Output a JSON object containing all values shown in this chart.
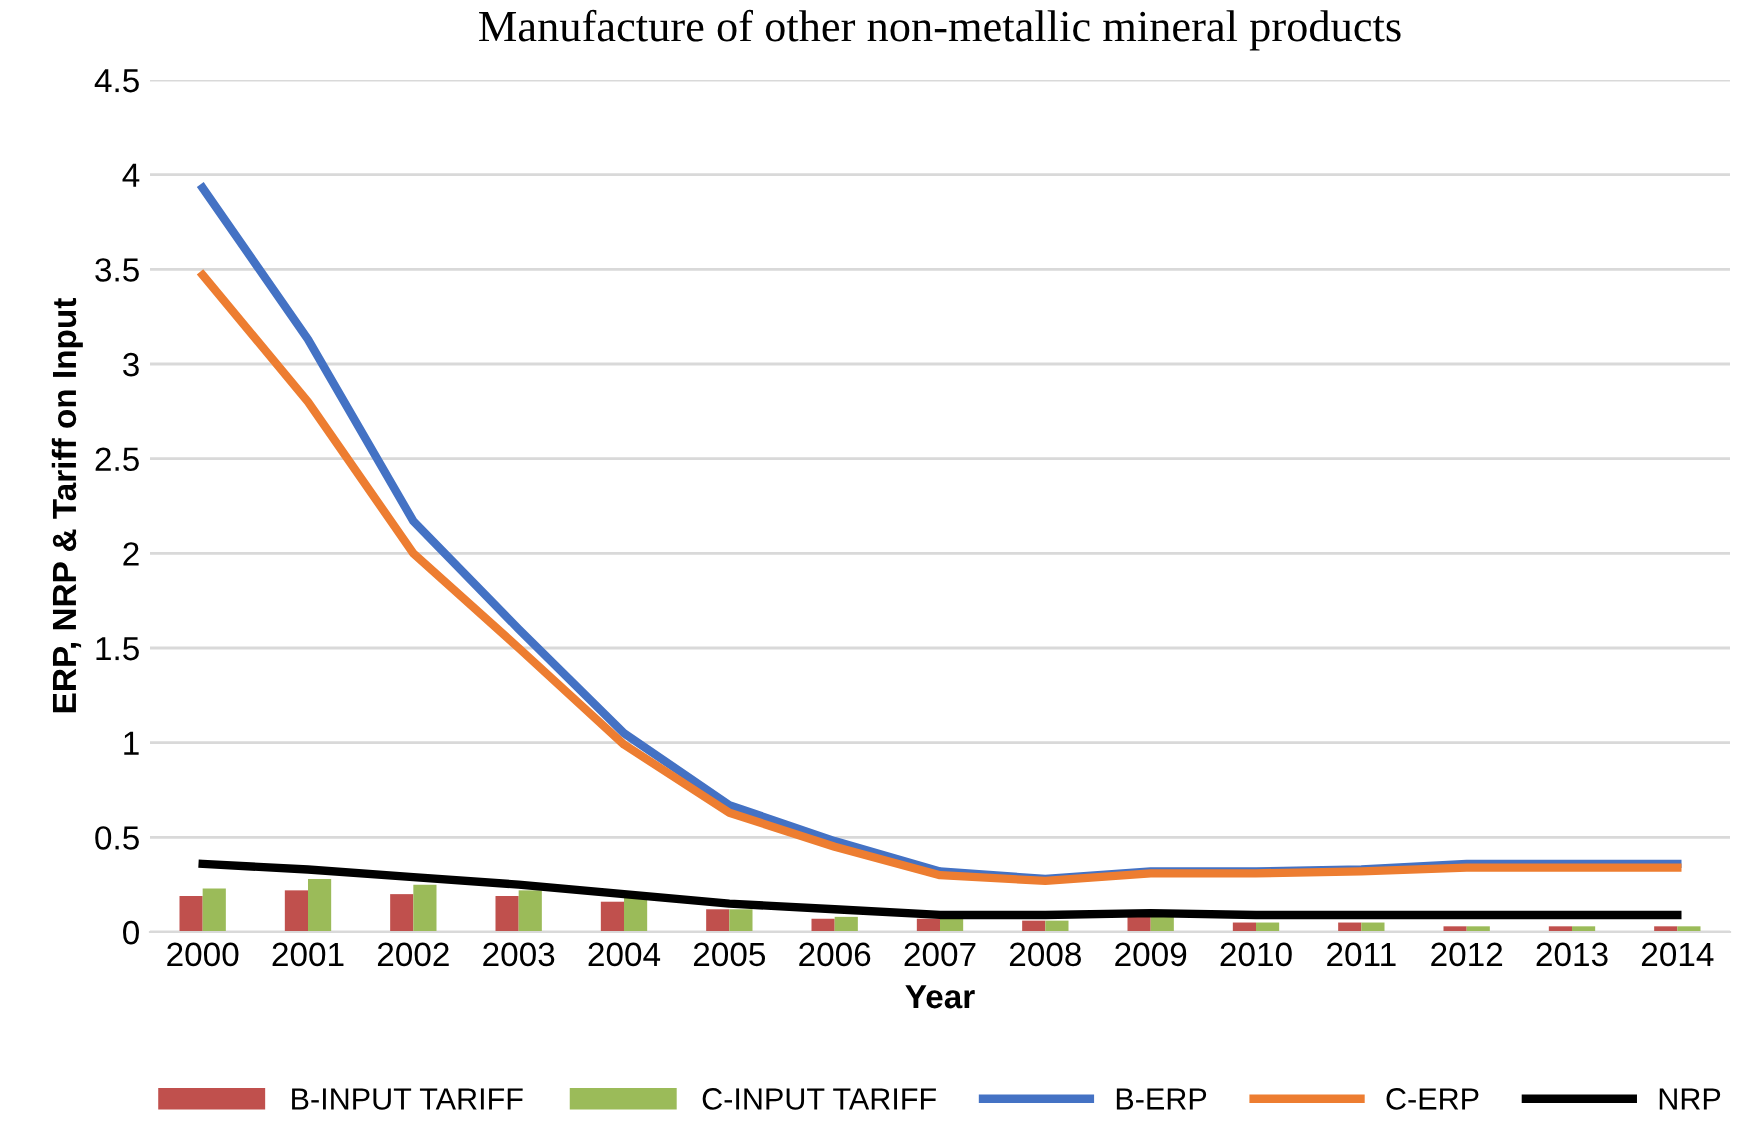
{
  "chart_data": {
    "type": "bar",
    "title": "Manufacture of other non-metallic mineral products",
    "xlabel": "Year",
    "ylabel": "ERP, NRP & Tariff on Input",
    "categories": [
      "2000",
      "2001",
      "2002",
      "2003",
      "2004",
      "2005",
      "2006",
      "2007",
      "2008",
      "2009",
      "2010",
      "2011",
      "2012",
      "2013",
      "2014"
    ],
    "series": [
      {
        "name": "B-INPUT TARIFF",
        "color": "#c0504d",
        "values": [
          0.19,
          0.22,
          0.2,
          0.19,
          0.16,
          0.12,
          0.07,
          0.07,
          0.06,
          0.08,
          0.05,
          0.05,
          0.03,
          0.03,
          0.03
        ]
      },
      {
        "name": "C-INPUT TARIFF",
        "color": "#9bbb59",
        "values": [
          0.23,
          0.28,
          0.25,
          0.22,
          0.18,
          0.12,
          0.08,
          0.07,
          0.06,
          0.08,
          0.05,
          0.05,
          0.03,
          0.03,
          0.03
        ]
      },
      {
        "name": "B-ERP",
        "type": "line",
        "color": "#4472c4",
        "values": [
          3.93,
          3.13,
          2.17,
          1.6,
          1.05,
          0.67,
          0.48,
          0.32,
          0.28,
          0.32,
          0.32,
          0.33,
          0.36,
          0.36,
          0.36
        ]
      },
      {
        "name": "C-ERP",
        "type": "line",
        "color": "#ed7d31",
        "values": [
          3.47,
          2.8,
          2.0,
          1.5,
          0.99,
          0.63,
          0.45,
          0.3,
          0.27,
          0.31,
          0.31,
          0.32,
          0.34,
          0.34,
          0.34
        ]
      },
      {
        "name": "NRP",
        "type": "line",
        "color": "#000000",
        "values": [
          0.36,
          0.33,
          0.29,
          0.25,
          0.2,
          0.15,
          0.12,
          0.09,
          0.09,
          0.1,
          0.09,
          0.09,
          0.09,
          0.09,
          0.09
        ]
      }
    ],
    "ylim": [
      0,
      4.5
    ],
    "yticks": [
      0,
      0.5,
      1,
      1.5,
      2,
      2.5,
      3,
      3.5,
      4,
      4.5
    ],
    "grid": "y",
    "legend": "bottom"
  }
}
